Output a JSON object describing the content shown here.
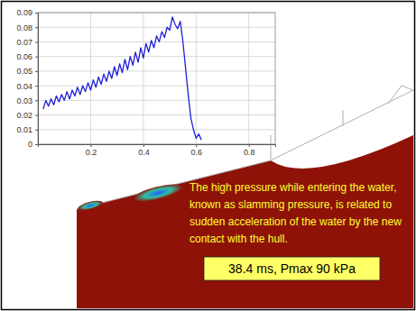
{
  "chart_data": {
    "type": "line",
    "x": [
      0.02,
      0.03,
      0.04,
      0.05,
      0.06,
      0.07,
      0.08,
      0.09,
      0.1,
      0.11,
      0.12,
      0.13,
      0.14,
      0.15,
      0.16,
      0.17,
      0.18,
      0.19,
      0.2,
      0.21,
      0.22,
      0.23,
      0.24,
      0.25,
      0.26,
      0.27,
      0.28,
      0.29,
      0.3,
      0.31,
      0.32,
      0.33,
      0.34,
      0.35,
      0.36,
      0.37,
      0.38,
      0.39,
      0.4,
      0.41,
      0.42,
      0.43,
      0.44,
      0.45,
      0.46,
      0.47,
      0.48,
      0.49,
      0.5,
      0.51,
      0.52,
      0.53,
      0.54,
      0.55,
      0.56,
      0.57,
      0.58,
      0.59,
      0.6,
      0.61,
      0.62
    ],
    "series": [
      {
        "color": "#1f1fd6",
        "values": [
          0.024,
          0.03,
          0.026,
          0.031,
          0.027,
          0.033,
          0.029,
          0.034,
          0.03,
          0.036,
          0.031,
          0.037,
          0.033,
          0.039,
          0.034,
          0.04,
          0.036,
          0.042,
          0.037,
          0.044,
          0.039,
          0.046,
          0.041,
          0.048,
          0.043,
          0.05,
          0.045,
          0.053,
          0.047,
          0.055,
          0.049,
          0.058,
          0.051,
          0.06,
          0.054,
          0.063,
          0.056,
          0.066,
          0.059,
          0.069,
          0.063,
          0.071,
          0.066,
          0.074,
          0.07,
          0.077,
          0.073,
          0.08,
          0.078,
          0.087,
          0.082,
          0.079,
          0.084,
          0.07,
          0.052,
          0.034,
          0.018,
          0.01,
          0.004,
          0.007,
          0.003
        ]
      }
    ],
    "xlim": [
      0,
      0.9
    ],
    "ylim": [
      0,
      0.09
    ],
    "xticks": [
      0.2,
      0.4,
      0.6,
      0.8
    ],
    "yticks": [
      0,
      0.01,
      0.02,
      0.03,
      0.04,
      0.05,
      0.06,
      0.07,
      0.08,
      0.09
    ],
    "grid": true,
    "annotations": [
      "The high pressure while entering the water, known as slamming pressure, is related to sudden acceleration of the water by the new contact with the hull.",
      "38.4 ms, Pmax 90 kPa"
    ]
  }
}
